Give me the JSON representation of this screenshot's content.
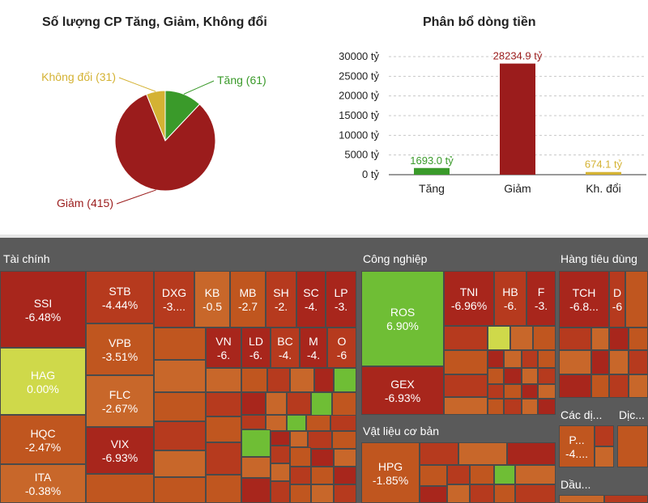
{
  "colors": {
    "up": "#3a9a2a",
    "down": "#9b1c1c",
    "unchanged": "#d4b233",
    "tm_red": "#a8261c",
    "tm_red2": "#b63a1e",
    "tm_orange": "#c0561f",
    "tm_orange2": "#c8672a",
    "tm_green": "#6fbe35",
    "tm_yellow": "#cfd94a"
  },
  "chart_data": [
    {
      "type": "pie",
      "title": "Số lượng CP Tăng, Giảm, Không đổi",
      "slices": [
        {
          "label": "Tăng (61)",
          "value": 61,
          "color": "#3a9a2a"
        },
        {
          "label": "Giảm (415)",
          "value": 415,
          "color": "#9b1c1c"
        },
        {
          "label": "Không đổi (31)",
          "value": 31,
          "color": "#d4b233"
        }
      ]
    },
    {
      "type": "bar",
      "title": "Phân bổ dòng tiền",
      "categories": [
        "Tăng",
        "Giảm",
        "Kh. đổi"
      ],
      "values": [
        1693.0,
        28234.9,
        674.1
      ],
      "data_labels": [
        "1693.0 tỷ",
        "28234.9 tỷ",
        "674.1 tỷ"
      ],
      "colors": [
        "#3a9a2a",
        "#9b1c1c",
        "#d4b233"
      ],
      "yticks": [
        "0 tỷ",
        "5000 tỷ",
        "10000 tỷ",
        "15000 tỷ",
        "20000 tỷ",
        "25000 tỷ",
        "30000 tỷ"
      ],
      "ylim": [
        0,
        30000
      ],
      "grid": true
    },
    {
      "type": "treemap",
      "sectors": [
        {
          "name": "Tài chính"
        },
        {
          "name": "Công nghiệp"
        },
        {
          "name": "Hàng tiêu dùng"
        },
        {
          "name": "Vật liệu cơ bản"
        },
        {
          "name": "Các dị..."
        },
        {
          "name": "Dịc..."
        },
        {
          "name": "Dầu..."
        }
      ],
      "tiles": [
        {
          "ticker": "SSI",
          "change": "-6.48%"
        },
        {
          "ticker": "HAG",
          "change": "0.00%"
        },
        {
          "ticker": "HQC",
          "change": "-2.47%"
        },
        {
          "ticker": "ITA",
          "change": "-0.38%"
        },
        {
          "ticker": "STB",
          "change": "-4.44%"
        },
        {
          "ticker": "VPB",
          "change": "-3.51%"
        },
        {
          "ticker": "FLC",
          "change": "-2.67%"
        },
        {
          "ticker": "VIX",
          "change": "-6.93%"
        },
        {
          "ticker": "DXG",
          "change": "-3...."
        },
        {
          "ticker": "KB",
          "change": "-0.5"
        },
        {
          "ticker": "MB",
          "change": "-2.7"
        },
        {
          "ticker": "SH",
          "change": "-2."
        },
        {
          "ticker": "SC",
          "change": "-4."
        },
        {
          "ticker": "LP",
          "change": "-3."
        },
        {
          "ticker": "VN",
          "change": "-6."
        },
        {
          "ticker": "LD",
          "change": "-6."
        },
        {
          "ticker": "BC",
          "change": "-4."
        },
        {
          "ticker": "M",
          "change": "-4."
        },
        {
          "ticker": "O",
          "change": "-6"
        },
        {
          "ticker": "ROS",
          "change": "6.90%"
        },
        {
          "ticker": "GEX",
          "change": "-6.93%"
        },
        {
          "ticker": "TNI",
          "change": "-6.96%"
        },
        {
          "ticker": "HB",
          "change": "-6."
        },
        {
          "ticker": "F",
          "change": "-3."
        },
        {
          "ticker": "HPG",
          "change": "-1.85%"
        },
        {
          "ticker": "TCH",
          "change": "-6.8..."
        },
        {
          "ticker": "D",
          "change": "-6"
        },
        {
          "ticker": "P...",
          "change": "-4...."
        }
      ]
    }
  ]
}
